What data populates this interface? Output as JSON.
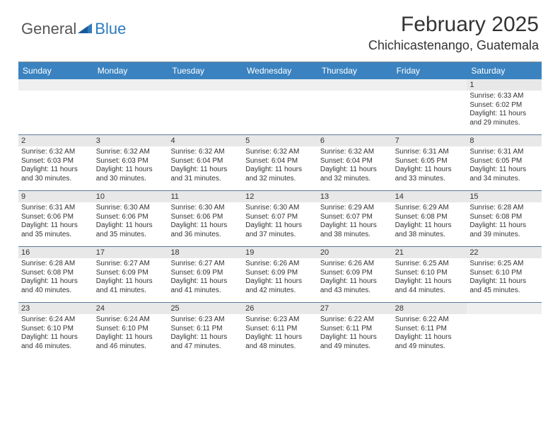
{
  "logo": {
    "word1": "General",
    "word2": "Blue",
    "icon_color": "#2b7bbf"
  },
  "title": "February 2025",
  "location": "Chichicastenango, Guatemala",
  "colors": {
    "header_bg": "#3b83c0",
    "header_text": "#ffffff",
    "daynum_bg": "#e8e8e8",
    "week_border": "#5a7a9a",
    "logo_blue": "#2b7bbf"
  },
  "day_names": [
    "Sunday",
    "Monday",
    "Tuesday",
    "Wednesday",
    "Thursday",
    "Friday",
    "Saturday"
  ],
  "weeks": [
    [
      {
        "n": "",
        "sunrise": "",
        "sunset": "",
        "daylight": ""
      },
      {
        "n": "",
        "sunrise": "",
        "sunset": "",
        "daylight": ""
      },
      {
        "n": "",
        "sunrise": "",
        "sunset": "",
        "daylight": ""
      },
      {
        "n": "",
        "sunrise": "",
        "sunset": "",
        "daylight": ""
      },
      {
        "n": "",
        "sunrise": "",
        "sunset": "",
        "daylight": ""
      },
      {
        "n": "",
        "sunrise": "",
        "sunset": "",
        "daylight": ""
      },
      {
        "n": "1",
        "sunrise": "Sunrise: 6:33 AM",
        "sunset": "Sunset: 6:02 PM",
        "daylight": "Daylight: 11 hours and 29 minutes."
      }
    ],
    [
      {
        "n": "2",
        "sunrise": "Sunrise: 6:32 AM",
        "sunset": "Sunset: 6:03 PM",
        "daylight": "Daylight: 11 hours and 30 minutes."
      },
      {
        "n": "3",
        "sunrise": "Sunrise: 6:32 AM",
        "sunset": "Sunset: 6:03 PM",
        "daylight": "Daylight: 11 hours and 30 minutes."
      },
      {
        "n": "4",
        "sunrise": "Sunrise: 6:32 AM",
        "sunset": "Sunset: 6:04 PM",
        "daylight": "Daylight: 11 hours and 31 minutes."
      },
      {
        "n": "5",
        "sunrise": "Sunrise: 6:32 AM",
        "sunset": "Sunset: 6:04 PM",
        "daylight": "Daylight: 11 hours and 32 minutes."
      },
      {
        "n": "6",
        "sunrise": "Sunrise: 6:32 AM",
        "sunset": "Sunset: 6:04 PM",
        "daylight": "Daylight: 11 hours and 32 minutes."
      },
      {
        "n": "7",
        "sunrise": "Sunrise: 6:31 AM",
        "sunset": "Sunset: 6:05 PM",
        "daylight": "Daylight: 11 hours and 33 minutes."
      },
      {
        "n": "8",
        "sunrise": "Sunrise: 6:31 AM",
        "sunset": "Sunset: 6:05 PM",
        "daylight": "Daylight: 11 hours and 34 minutes."
      }
    ],
    [
      {
        "n": "9",
        "sunrise": "Sunrise: 6:31 AM",
        "sunset": "Sunset: 6:06 PM",
        "daylight": "Daylight: 11 hours and 35 minutes."
      },
      {
        "n": "10",
        "sunrise": "Sunrise: 6:30 AM",
        "sunset": "Sunset: 6:06 PM",
        "daylight": "Daylight: 11 hours and 35 minutes."
      },
      {
        "n": "11",
        "sunrise": "Sunrise: 6:30 AM",
        "sunset": "Sunset: 6:06 PM",
        "daylight": "Daylight: 11 hours and 36 minutes."
      },
      {
        "n": "12",
        "sunrise": "Sunrise: 6:30 AM",
        "sunset": "Sunset: 6:07 PM",
        "daylight": "Daylight: 11 hours and 37 minutes."
      },
      {
        "n": "13",
        "sunrise": "Sunrise: 6:29 AM",
        "sunset": "Sunset: 6:07 PM",
        "daylight": "Daylight: 11 hours and 38 minutes."
      },
      {
        "n": "14",
        "sunrise": "Sunrise: 6:29 AM",
        "sunset": "Sunset: 6:08 PM",
        "daylight": "Daylight: 11 hours and 38 minutes."
      },
      {
        "n": "15",
        "sunrise": "Sunrise: 6:28 AM",
        "sunset": "Sunset: 6:08 PM",
        "daylight": "Daylight: 11 hours and 39 minutes."
      }
    ],
    [
      {
        "n": "16",
        "sunrise": "Sunrise: 6:28 AM",
        "sunset": "Sunset: 6:08 PM",
        "daylight": "Daylight: 11 hours and 40 minutes."
      },
      {
        "n": "17",
        "sunrise": "Sunrise: 6:27 AM",
        "sunset": "Sunset: 6:09 PM",
        "daylight": "Daylight: 11 hours and 41 minutes."
      },
      {
        "n": "18",
        "sunrise": "Sunrise: 6:27 AM",
        "sunset": "Sunset: 6:09 PM",
        "daylight": "Daylight: 11 hours and 41 minutes."
      },
      {
        "n": "19",
        "sunrise": "Sunrise: 6:26 AM",
        "sunset": "Sunset: 6:09 PM",
        "daylight": "Daylight: 11 hours and 42 minutes."
      },
      {
        "n": "20",
        "sunrise": "Sunrise: 6:26 AM",
        "sunset": "Sunset: 6:09 PM",
        "daylight": "Daylight: 11 hours and 43 minutes."
      },
      {
        "n": "21",
        "sunrise": "Sunrise: 6:25 AM",
        "sunset": "Sunset: 6:10 PM",
        "daylight": "Daylight: 11 hours and 44 minutes."
      },
      {
        "n": "22",
        "sunrise": "Sunrise: 6:25 AM",
        "sunset": "Sunset: 6:10 PM",
        "daylight": "Daylight: 11 hours and 45 minutes."
      }
    ],
    [
      {
        "n": "23",
        "sunrise": "Sunrise: 6:24 AM",
        "sunset": "Sunset: 6:10 PM",
        "daylight": "Daylight: 11 hours and 46 minutes."
      },
      {
        "n": "24",
        "sunrise": "Sunrise: 6:24 AM",
        "sunset": "Sunset: 6:10 PM",
        "daylight": "Daylight: 11 hours and 46 minutes."
      },
      {
        "n": "25",
        "sunrise": "Sunrise: 6:23 AM",
        "sunset": "Sunset: 6:11 PM",
        "daylight": "Daylight: 11 hours and 47 minutes."
      },
      {
        "n": "26",
        "sunrise": "Sunrise: 6:23 AM",
        "sunset": "Sunset: 6:11 PM",
        "daylight": "Daylight: 11 hours and 48 minutes."
      },
      {
        "n": "27",
        "sunrise": "Sunrise: 6:22 AM",
        "sunset": "Sunset: 6:11 PM",
        "daylight": "Daylight: 11 hours and 49 minutes."
      },
      {
        "n": "28",
        "sunrise": "Sunrise: 6:22 AM",
        "sunset": "Sunset: 6:11 PM",
        "daylight": "Daylight: 11 hours and 49 minutes."
      },
      {
        "n": "",
        "sunrise": "",
        "sunset": "",
        "daylight": ""
      }
    ]
  ]
}
